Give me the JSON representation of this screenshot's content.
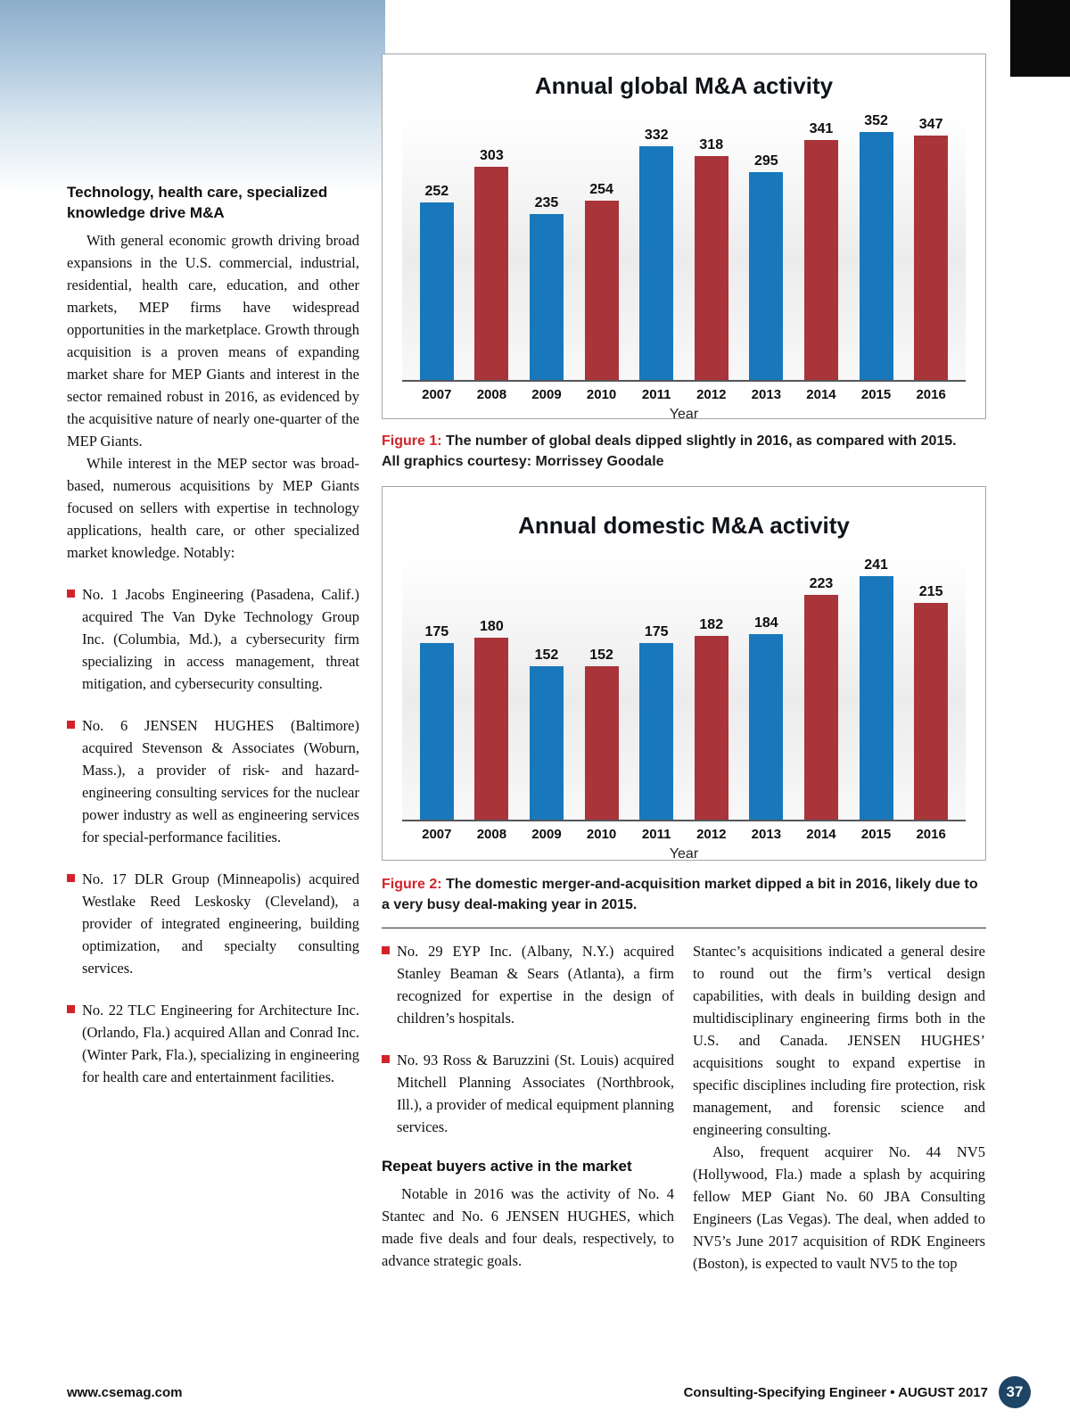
{
  "colors": {
    "accent_red": "#d2232a",
    "bar_blue": "#1878bb",
    "bar_red": "#a93439",
    "footer_circle": "#1e4466"
  },
  "chart_data": [
    {
      "type": "bar",
      "title": "Annual global M&A activity",
      "xlabel": "Year",
      "ylabel": "",
      "categories": [
        "2007",
        "2008",
        "2009",
        "2010",
        "2011",
        "2012",
        "2013",
        "2014",
        "2015",
        "2016"
      ],
      "values": [
        252,
        303,
        235,
        254,
        332,
        318,
        295,
        341,
        352,
        347
      ],
      "ylim": [
        0,
        380
      ],
      "grid": false,
      "legend": "none",
      "value_labels": true,
      "colors": [
        "#1878bb",
        "#a93439"
      ]
    },
    {
      "type": "bar",
      "title": "Annual domestic M&A activity",
      "xlabel": "Year",
      "ylabel": "",
      "categories": [
        "2007",
        "2008",
        "2009",
        "2010",
        "2011",
        "2012",
        "2013",
        "2014",
        "2015",
        "2016"
      ],
      "values": [
        175,
        180,
        152,
        152,
        175,
        182,
        184,
        223,
        241,
        215
      ],
      "ylim": [
        0,
        265
      ],
      "grid": false,
      "legend": "none",
      "value_labels": true,
      "colors": [
        "#1878bb",
        "#a93439"
      ]
    }
  ],
  "figures": {
    "fig1": {
      "label": "Figure 1:",
      "text": "The number of global deals dipped slightly in 2016, as compared with 2015.",
      "credit": "All graphics courtesy: Morrissey Goodale"
    },
    "fig2": {
      "label": "Figure 2:",
      "text": "The domestic merger-and-acquisition market dipped a bit in 2016, likely due to a very busy deal-making year in 2015."
    }
  },
  "article": {
    "left": {
      "heading": "Technology, health care, specialized knowledge drive M&A",
      "para1": "With general economic growth driving broad expansions in the U.S. commercial, industrial, residential, health care, education, and other markets, MEP firms have widespread opportunities in the marketplace. Growth through acquisition is a proven means of expanding market share for MEP Giants and interest in the sector remained robust in 2016, as evidenced by the acquisitive nature of nearly one-quarter of the MEP Giants.",
      "para2": "While interest in the MEP sector was broad-based, numerous acquisitions by MEP Giants focused on sellers with expertise in technology applications, health care, or other specialized market knowledge. Notably:",
      "bullets": [
        "No. 1 Jacobs Engineering (Pasadena, Calif.) acquired The Van Dyke Technology Group Inc. (Columbia, Md.), a cybersecurity firm specializing in access management, threat mitigation, and cybersecurity consulting.",
        "No. 6 JENSEN HUGHES (Baltimore) acquired Stevenson & Associates (Woburn, Mass.), a provider of risk- and hazard-engineering consulting services for the nuclear power industry as well as engineering services for special-performance facilities.",
        "No. 17 DLR Group (Minneapolis) acquired Westlake Reed Leskosky (Cleveland), a provider of integrated engineering, building optimization, and specialty consulting services.",
        "No. 22 TLC Engineering for Architecture Inc. (Orlando, Fla.) acquired Allan and Conrad Inc. (Winter Park, Fla.), specializing in engineering for health care and entertainment facilities."
      ]
    },
    "middle": {
      "bullets": [
        "No. 29 EYP Inc. (Albany, N.Y.) acquired Stanley Beaman & Sears (Atlanta), a firm recognized for expertise in the design of children’s hospitals.",
        "No. 93 Ross & Baruzzini (St. Louis) acquired Mitchell Planning Associates (Northbrook, Ill.), a provider of medical equipment planning services."
      ],
      "heading": "Repeat buyers active in the market",
      "para": "Notable in 2016 was the activity of No. 4 Stantec and No. 6 JENSEN HUGHES, which made five deals and four deals, respectively, to advance strategic goals."
    },
    "right": {
      "para1": "Stantec’s acquisitions indicated a general desire to round out the firm’s vertical design capabilities, with deals in building design and multidisciplinary engineering firms both in the U.S. and Canada. JENSEN HUGHES’ acquisitions sought to expand expertise in specific disciplines including fire protection, risk management, and forensic science and engineering consulting.",
      "para2": "Also, frequent acquirer No. 44 NV5 (Hollywood, Fla.) made a splash by acquiring fellow MEP Giant No. 60 JBA Consulting Engineers (Las Vegas). The deal, when added to NV5’s June 2017 acquisition of RDK Engineers (Boston), is expected to vault NV5 to the top"
    }
  },
  "footer": {
    "site": "www.csemag.com",
    "magazine": "Consulting-Specifying Engineer • AUGUST 2017",
    "page_number": "37"
  }
}
